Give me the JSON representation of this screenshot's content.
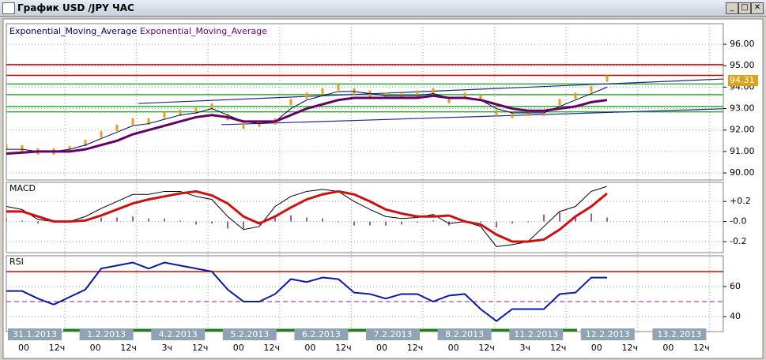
{
  "window": {
    "title": "График USD /JPY ЧАС"
  },
  "chart_data": [
    {
      "type": "price",
      "legend_prefix": "Exponential_Moving_Average",
      "price_color": "#e0a020",
      "price_values": [
        91.2,
        91.15,
        91.0,
        91.0,
        91.1,
        91.4,
        91.8,
        92.1,
        92.4,
        92.4,
        92.7,
        92.8,
        92.9,
        93.1,
        92.6,
        92.2,
        92.3,
        92.4,
        93.3,
        93.6,
        93.8,
        94.0,
        93.8,
        93.7,
        93.6,
        93.6,
        93.7,
        93.8,
        93.4,
        93.6,
        93.5,
        92.8,
        92.7,
        92.8,
        92.8,
        93.3,
        93.6,
        93.9,
        94.4
      ],
      "series": [
        {
          "name": "Exponential_Moving_Average",
          "color": "#000060",
          "width": 1,
          "values": [
            91.1,
            91.1,
            91.0,
            91.0,
            91.1,
            91.3,
            91.6,
            91.9,
            92.2,
            92.3,
            92.5,
            92.7,
            92.8,
            93.0,
            92.7,
            92.4,
            92.3,
            92.4,
            93.0,
            93.4,
            93.6,
            93.8,
            93.8,
            93.7,
            93.6,
            93.6,
            93.6,
            93.7,
            93.5,
            93.5,
            93.4,
            93.0,
            92.8,
            92.8,
            92.8,
            93.1,
            93.4,
            93.7,
            94.0
          ]
        },
        {
          "name": "Exponential_Moving_Average",
          "color": "#660066",
          "width": 3,
          "values": [
            90.9,
            90.95,
            91.0,
            91.0,
            91.0,
            91.1,
            91.3,
            91.5,
            91.8,
            92.0,
            92.2,
            92.4,
            92.6,
            92.7,
            92.6,
            92.4,
            92.4,
            92.4,
            92.7,
            93.0,
            93.2,
            93.4,
            93.5,
            93.5,
            93.5,
            93.5,
            93.5,
            93.6,
            93.5,
            93.5,
            93.4,
            93.2,
            93.0,
            92.9,
            92.9,
            93.0,
            93.1,
            93.3,
            93.4
          ]
        }
      ],
      "levels": [
        {
          "value": 95.05,
          "color": "#cc0000"
        },
        {
          "value": 94.55,
          "color": "#cc0000"
        },
        {
          "value": 94.15,
          "color": "#33aa33"
        },
        {
          "value": 93.65,
          "color": "#33aa33"
        },
        {
          "value": 93.1,
          "color": "#33aa33"
        },
        {
          "value": 92.85,
          "color": "#33aa33"
        }
      ],
      "trendlines": [
        {
          "x": [
            8.35,
            45.35
          ],
          "y": [
            93.24,
            94.38
          ],
          "color": "#1a2a8a"
        },
        {
          "x": [
            13.6,
            45.35
          ],
          "y": [
            92.25,
            92.99
          ],
          "color": "#1a2a8a"
        }
      ],
      "current_price": {
        "value": 94.31,
        "label": "94.31"
      },
      "ylim": [
        89.67,
        96.96
      ],
      "yticks": [
        {
          "value": 90,
          "label": "90.00"
        },
        {
          "value": 91,
          "label": "91.00"
        },
        {
          "value": 92,
          "label": "92.00"
        },
        {
          "value": 93,
          "label": "93.00"
        },
        {
          "value": 94,
          "label": "94.00"
        },
        {
          "value": 95,
          "label": "95.00"
        },
        {
          "value": 96,
          "label": "96.00"
        }
      ]
    },
    {
      "type": "macd",
      "title": "MACD",
      "histogram": {
        "color": "#882288",
        "values": [
          0.03,
          0.01,
          -0.02,
          0,
          0,
          0.02,
          0.04,
          0.04,
          0.05,
          0.03,
          0.03,
          0.01,
          -0.03,
          -0.02,
          -0.07,
          -0.07,
          -0.02,
          0.05,
          0.06,
          0.04,
          0.03,
          0.0,
          -0.04,
          -0.04,
          -0.04,
          -0.03,
          -0.01,
          0.01,
          -0.04,
          0,
          -0.01,
          -0.06,
          -0.02,
          0,
          0.07,
          0.09,
          0.05,
          0.08,
          0.04
        ]
      },
      "series": [
        {
          "color": "#000000",
          "width": 1,
          "values": [
            0.15,
            0.12,
            0.02,
            0.0,
            0.0,
            0.05,
            0.13,
            0.2,
            0.27,
            0.27,
            0.3,
            0.3,
            0.25,
            0.22,
            0.05,
            -0.08,
            -0.05,
            0.15,
            0.25,
            0.3,
            0.32,
            0.3,
            0.2,
            0.12,
            0.05,
            0.03,
            0.04,
            0.07,
            -0.02,
            0.0,
            -0.05,
            -0.25,
            -0.23,
            -0.2,
            -0.05,
            0.1,
            0.15,
            0.3,
            0.35
          ]
        },
        {
          "color": "#cc1111",
          "width": 3,
          "values": [
            0.1,
            0.1,
            0.05,
            0.0,
            0.0,
            0.01,
            0.06,
            0.12,
            0.18,
            0.22,
            0.25,
            0.28,
            0.3,
            0.26,
            0.18,
            0.05,
            -0.02,
            0.05,
            0.14,
            0.22,
            0.27,
            0.3,
            0.27,
            0.2,
            0.12,
            0.08,
            0.05,
            0.05,
            0.06,
            0.0,
            -0.03,
            -0.13,
            -0.2,
            -0.2,
            -0.18,
            -0.08,
            0.05,
            0.15,
            0.28
          ]
        }
      ],
      "ylim": [
        -0.31,
        0.39
      ],
      "yticks": [
        {
          "value": 0.2,
          "label": "+0.2"
        },
        {
          "value": 0,
          "label": "-0.0"
        },
        {
          "value": -0.2,
          "label": "-0.2"
        }
      ]
    },
    {
      "type": "rsi",
      "title": "RSI",
      "series": [
        {
          "color": "#0a1aa0",
          "width": 2,
          "values": [
            57,
            57,
            52,
            48,
            53,
            58,
            72,
            74,
            76,
            72,
            76,
            74,
            72,
            70,
            58,
            50,
            50,
            55,
            65,
            63,
            66,
            65,
            56,
            55,
            52,
            55,
            55,
            50,
            54,
            55,
            45,
            37,
            45,
            45,
            45,
            55,
            56,
            66,
            66
          ]
        }
      ],
      "levels": [
        {
          "value": 70,
          "color": "#dd0000"
        },
        {
          "value": 50,
          "color": "#882288",
          "dash": true
        }
      ],
      "ylim": [
        30,
        80.5
      ],
      "yticks": [
        60,
        40
      ]
    }
  ],
  "x_axis": {
    "dates": [
      "31.1.2013",
      "1.2.2013",
      "4.2.2013",
      "5.2.2013",
      "6.2.2013",
      "7.2.2013",
      "8.2.2013",
      "11.2.2013",
      "12.2.2013",
      "13.2.2013"
    ],
    "hours": [
      [
        "00",
        "12ч"
      ],
      [
        "00",
        "12ч"
      ],
      [
        "3ч",
        "12ч"
      ],
      [
        "00",
        "12ч"
      ],
      [
        "00",
        "12ч"
      ],
      [
        "00",
        "12ч"
      ],
      [
        "00",
        "12ч"
      ],
      [
        "3ч",
        "12ч"
      ],
      [
        "00",
        "12ч"
      ],
      [
        "00",
        "12ч"
      ]
    ]
  }
}
